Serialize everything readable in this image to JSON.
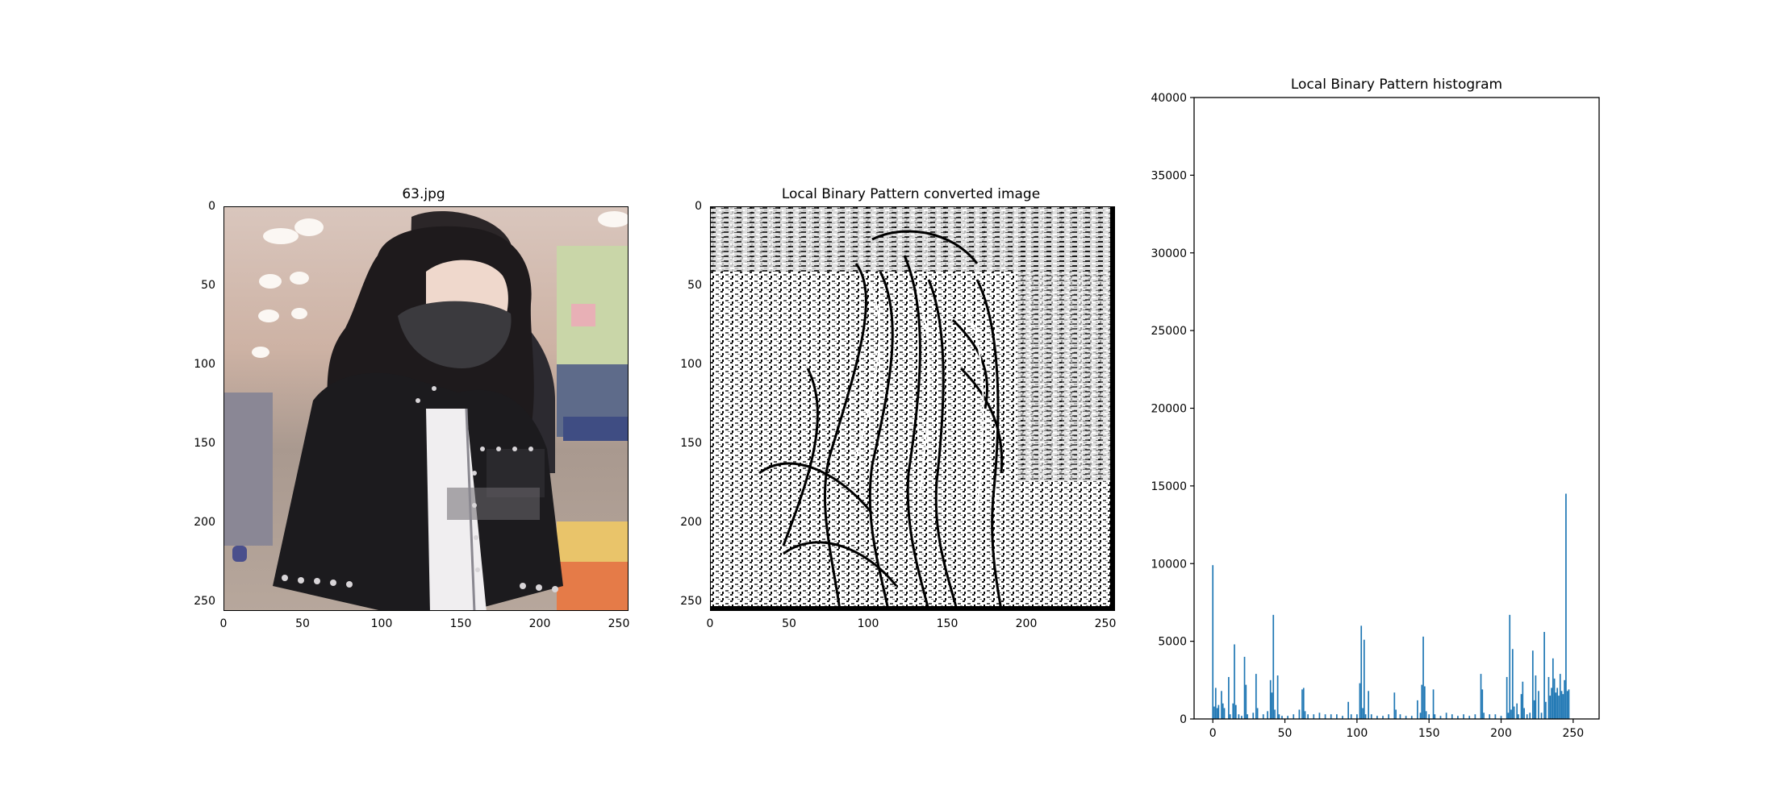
{
  "panels": {
    "photo": {
      "title": "63.jpg",
      "xticks": [
        "0",
        "50",
        "100",
        "150",
        "200",
        "250"
      ],
      "yticks": [
        "0",
        "50",
        "100",
        "150",
        "200",
        "250"
      ]
    },
    "lbp": {
      "title": "Local Binary Pattern converted image",
      "xticks": [
        "0",
        "50",
        "100",
        "150",
        "200",
        "250"
      ],
      "yticks": [
        "0",
        "50",
        "100",
        "150",
        "200",
        "250"
      ]
    }
  },
  "chart_data": {
    "type": "bar",
    "title": "Local Binary Pattern histogram",
    "xlabel": "",
    "ylabel": "",
    "xlim": [
      -13,
      268
    ],
    "ylim": [
      0,
      40000
    ],
    "xticks": [
      0,
      50,
      100,
      150,
      200,
      250
    ],
    "yticks": [
      0,
      5000,
      10000,
      15000,
      20000,
      25000,
      30000,
      35000,
      40000
    ],
    "grid": false,
    "bar_color": "#1f77b4",
    "bins": [
      {
        "x": 0,
        "value": 9900
      },
      {
        "x": 1,
        "value": 800
      },
      {
        "x": 2,
        "value": 2000
      },
      {
        "x": 3,
        "value": 700
      },
      {
        "x": 4,
        "value": 900
      },
      {
        "x": 6,
        "value": 1800
      },
      {
        "x": 7,
        "value": 1000
      },
      {
        "x": 8,
        "value": 700
      },
      {
        "x": 11,
        "value": 2700
      },
      {
        "x": 12,
        "value": 300
      },
      {
        "x": 14,
        "value": 1000
      },
      {
        "x": 15,
        "value": 4800
      },
      {
        "x": 16,
        "value": 900
      },
      {
        "x": 18,
        "value": 300
      },
      {
        "x": 20,
        "value": 200
      },
      {
        "x": 22,
        "value": 4000
      },
      {
        "x": 23,
        "value": 2200
      },
      {
        "x": 24,
        "value": 300
      },
      {
        "x": 28,
        "value": 400
      },
      {
        "x": 30,
        "value": 2900
      },
      {
        "x": 31,
        "value": 700
      },
      {
        "x": 35,
        "value": 300
      },
      {
        "x": 38,
        "value": 500
      },
      {
        "x": 40,
        "value": 2500
      },
      {
        "x": 41,
        "value": 1700
      },
      {
        "x": 42,
        "value": 6700
      },
      {
        "x": 43,
        "value": 600
      },
      {
        "x": 45,
        "value": 2800
      },
      {
        "x": 46,
        "value": 300
      },
      {
        "x": 48,
        "value": 200
      },
      {
        "x": 52,
        "value": 200
      },
      {
        "x": 56,
        "value": 300
      },
      {
        "x": 60,
        "value": 600
      },
      {
        "x": 62,
        "value": 1900
      },
      {
        "x": 63,
        "value": 2000
      },
      {
        "x": 64,
        "value": 500
      },
      {
        "x": 66,
        "value": 300
      },
      {
        "x": 70,
        "value": 300
      },
      {
        "x": 74,
        "value": 400
      },
      {
        "x": 78,
        "value": 300
      },
      {
        "x": 82,
        "value": 300
      },
      {
        "x": 86,
        "value": 300
      },
      {
        "x": 90,
        "value": 200
      },
      {
        "x": 94,
        "value": 1100
      },
      {
        "x": 96,
        "value": 300
      },
      {
        "x": 100,
        "value": 300
      },
      {
        "x": 102,
        "value": 2300
      },
      {
        "x": 103,
        "value": 6000
      },
      {
        "x": 104,
        "value": 700
      },
      {
        "x": 105,
        "value": 5100
      },
      {
        "x": 106,
        "value": 300
      },
      {
        "x": 108,
        "value": 1800
      },
      {
        "x": 110,
        "value": 300
      },
      {
        "x": 114,
        "value": 200
      },
      {
        "x": 118,
        "value": 200
      },
      {
        "x": 122,
        "value": 300
      },
      {
        "x": 126,
        "value": 1700
      },
      {
        "x": 127,
        "value": 600
      },
      {
        "x": 130,
        "value": 300
      },
      {
        "x": 134,
        "value": 200
      },
      {
        "x": 138,
        "value": 200
      },
      {
        "x": 142,
        "value": 1200
      },
      {
        "x": 144,
        "value": 400
      },
      {
        "x": 145,
        "value": 2200
      },
      {
        "x": 146,
        "value": 5300
      },
      {
        "x": 147,
        "value": 2100
      },
      {
        "x": 148,
        "value": 500
      },
      {
        "x": 150,
        "value": 300
      },
      {
        "x": 153,
        "value": 1900
      },
      {
        "x": 154,
        "value": 300
      },
      {
        "x": 158,
        "value": 200
      },
      {
        "x": 162,
        "value": 400
      },
      {
        "x": 166,
        "value": 300
      },
      {
        "x": 170,
        "value": 200
      },
      {
        "x": 174,
        "value": 300
      },
      {
        "x": 178,
        "value": 200
      },
      {
        "x": 182,
        "value": 300
      },
      {
        "x": 186,
        "value": 2900
      },
      {
        "x": 187,
        "value": 1900
      },
      {
        "x": 188,
        "value": 400
      },
      {
        "x": 192,
        "value": 300
      },
      {
        "x": 196,
        "value": 300
      },
      {
        "x": 200,
        "value": 200
      },
      {
        "x": 204,
        "value": 2700
      },
      {
        "x": 205,
        "value": 400
      },
      {
        "x": 206,
        "value": 6700
      },
      {
        "x": 207,
        "value": 600
      },
      {
        "x": 208,
        "value": 4500
      },
      {
        "x": 209,
        "value": 800
      },
      {
        "x": 211,
        "value": 1000
      },
      {
        "x": 212,
        "value": 300
      },
      {
        "x": 214,
        "value": 1600
      },
      {
        "x": 215,
        "value": 2400
      },
      {
        "x": 216,
        "value": 700
      },
      {
        "x": 218,
        "value": 300
      },
      {
        "x": 220,
        "value": 400
      },
      {
        "x": 222,
        "value": 4400
      },
      {
        "x": 223,
        "value": 1200
      },
      {
        "x": 224,
        "value": 2800
      },
      {
        "x": 226,
        "value": 1800
      },
      {
        "x": 228,
        "value": 400
      },
      {
        "x": 230,
        "value": 5600
      },
      {
        "x": 231,
        "value": 1100
      },
      {
        "x": 233,
        "value": 2700
      },
      {
        "x": 234,
        "value": 1500
      },
      {
        "x": 235,
        "value": 2000
      },
      {
        "x": 236,
        "value": 3900
      },
      {
        "x": 237,
        "value": 2600
      },
      {
        "x": 238,
        "value": 1700
      },
      {
        "x": 239,
        "value": 2000
      },
      {
        "x": 240,
        "value": 1500
      },
      {
        "x": 241,
        "value": 2900
      },
      {
        "x": 242,
        "value": 1800
      },
      {
        "x": 243,
        "value": 1600
      },
      {
        "x": 244,
        "value": 2500
      },
      {
        "x": 245,
        "value": 14500
      },
      {
        "x": 246,
        "value": 1800
      },
      {
        "x": 247,
        "value": 1900
      }
    ]
  }
}
